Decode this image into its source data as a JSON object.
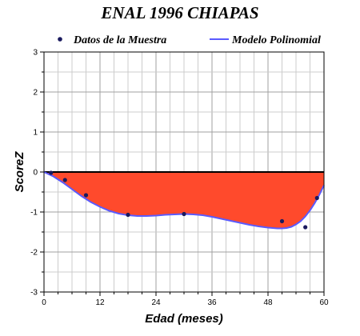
{
  "chart_data": {
    "type": "area",
    "title": "ENAL 1996 CHIAPAS",
    "xlabel": "Edad (meses)",
    "ylabel": "ScoreZ",
    "xlim": [
      0,
      60
    ],
    "ylim": [
      -3,
      3
    ],
    "xticks": [
      0,
      12,
      24,
      36,
      48,
      60
    ],
    "yticks": [
      -3,
      -2,
      -1,
      0,
      1,
      2,
      3
    ],
    "grid": true,
    "legend_position": "top",
    "series": [
      {
        "name": "Datos de la Muestra",
        "kind": "scatter",
        "color": "#1a1a5e",
        "x": [
          1.5,
          4.5,
          9,
          18,
          30,
          51,
          56,
          58.5
        ],
        "y": [
          -0.02,
          -0.2,
          -0.58,
          -1.07,
          -1.05,
          -1.23,
          -1.38,
          -0.65
        ]
      },
      {
        "name": "Modelo Polinomial",
        "kind": "line",
        "color": "#5a5aff",
        "fill_color": "#ff4a2c",
        "x": [
          0,
          2,
          4,
          6,
          8,
          10,
          12,
          14,
          16,
          18,
          20,
          22,
          24,
          26,
          28,
          30,
          32,
          34,
          36,
          38,
          40,
          42,
          44,
          46,
          48,
          50,
          51,
          52,
          53,
          54,
          55,
          56,
          57,
          58,
          59,
          60
        ],
        "y": [
          0,
          -0.11,
          -0.26,
          -0.43,
          -0.6,
          -0.75,
          -0.87,
          -0.97,
          -1.04,
          -1.08,
          -1.1,
          -1.1,
          -1.09,
          -1.07,
          -1.06,
          -1.05,
          -1.06,
          -1.08,
          -1.12,
          -1.17,
          -1.22,
          -1.27,
          -1.32,
          -1.36,
          -1.39,
          -1.41,
          -1.41,
          -1.4,
          -1.37,
          -1.31,
          -1.23,
          -1.11,
          -0.96,
          -0.78,
          -0.57,
          -0.33
        ]
      }
    ]
  }
}
